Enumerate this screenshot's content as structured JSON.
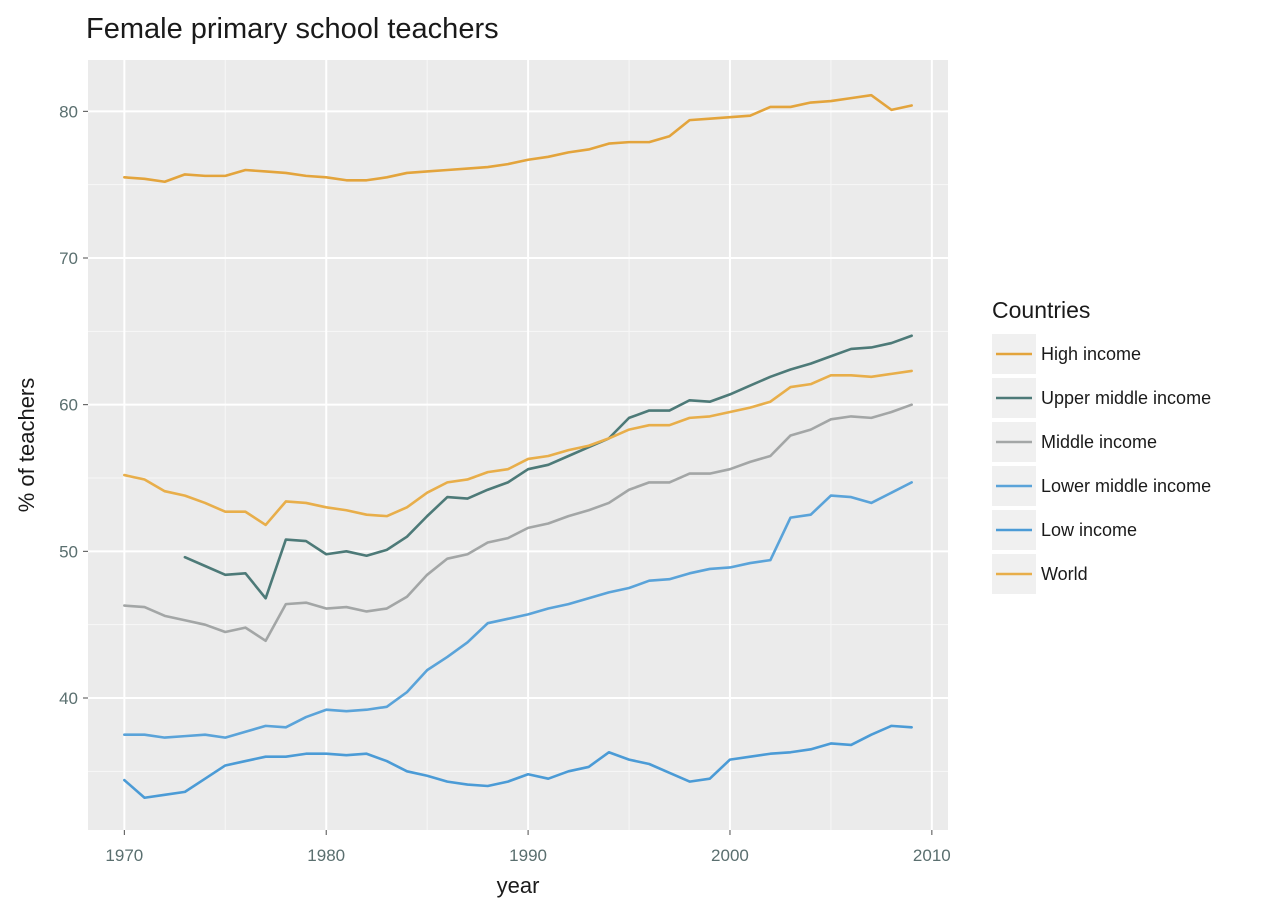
{
  "chart_data": {
    "type": "line",
    "title": "Female primary school teachers",
    "xlabel": "year",
    "ylabel": "% of teachers",
    "xlim": [
      1968.2,
      2010.8
    ],
    "ylim": [
      31.0,
      83.5
    ],
    "x_ticks": [
      1970,
      1980,
      1990,
      2000,
      2010
    ],
    "y_ticks": [
      40,
      50,
      60,
      70,
      80
    ],
    "grid": true,
    "legend": {
      "title": "Countries",
      "placement": "right"
    },
    "series": [
      {
        "name": "High income",
        "color": "#e3a43c",
        "x": [
          1970,
          1971,
          1972,
          1973,
          1974,
          1975,
          1976,
          1977,
          1978,
          1979,
          1980,
          1981,
          1982,
          1983,
          1984,
          1985,
          1986,
          1987,
          1988,
          1989,
          1990,
          1991,
          1992,
          1993,
          1994,
          1995,
          1996,
          1997,
          1998,
          1999,
          2000,
          2001,
          2002,
          2003,
          2004,
          2005,
          2006,
          2007,
          2008,
          2009
        ],
        "values": [
          75.5,
          75.4,
          75.2,
          75.7,
          75.6,
          75.6,
          76.0,
          75.9,
          75.8,
          75.6,
          75.5,
          75.3,
          75.3,
          75.5,
          75.8,
          75.9,
          76.0,
          76.1,
          76.2,
          76.4,
          76.7,
          76.9,
          77.2,
          77.4,
          77.8,
          77.9,
          77.9,
          78.3,
          79.4,
          79.5,
          79.6,
          79.7,
          80.3,
          80.3,
          80.6,
          80.7,
          80.9,
          81.1,
          80.1,
          80.4
        ]
      },
      {
        "name": "Upper middle income",
        "color": "#4d7a78",
        "x": [
          1973,
          1974,
          1975,
          1976,
          1977,
          1978,
          1979,
          1980,
          1981,
          1982,
          1983,
          1984,
          1985,
          1986,
          1987,
          1988,
          1989,
          1990,
          1991,
          1992,
          1993,
          1994,
          1995,
          1996,
          1997,
          1998,
          1999,
          2000,
          2001,
          2002,
          2003,
          2004,
          2005,
          2006,
          2007,
          2008,
          2009
        ],
        "values": [
          49.6,
          49.0,
          48.4,
          48.5,
          46.8,
          50.8,
          50.7,
          49.8,
          50.0,
          49.7,
          50.1,
          51.0,
          52.4,
          53.7,
          53.6,
          54.2,
          54.7,
          55.6,
          55.9,
          56.5,
          57.1,
          57.7,
          59.1,
          59.6,
          59.6,
          60.3,
          60.2,
          60.7,
          61.3,
          61.9,
          62.4,
          62.8,
          63.3,
          63.8,
          63.9,
          64.2,
          64.7
        ]
      },
      {
        "name": "Middle income",
        "color": "#a3a6a6",
        "x": [
          1970,
          1971,
          1972,
          1973,
          1974,
          1975,
          1976,
          1977,
          1978,
          1979,
          1980,
          1981,
          1982,
          1983,
          1984,
          1985,
          1986,
          1987,
          1988,
          1989,
          1990,
          1991,
          1992,
          1993,
          1994,
          1995,
          1996,
          1997,
          1998,
          1999,
          2000,
          2001,
          2002,
          2003,
          2004,
          2005,
          2006,
          2007,
          2008,
          2009
        ],
        "values": [
          46.3,
          46.2,
          45.6,
          45.3,
          45.0,
          44.5,
          44.8,
          43.9,
          46.4,
          46.5,
          46.1,
          46.2,
          45.9,
          46.1,
          46.9,
          48.4,
          49.5,
          49.8,
          50.6,
          50.9,
          51.6,
          51.9,
          52.4,
          52.8,
          53.3,
          54.2,
          54.7,
          54.7,
          55.3,
          55.3,
          55.6,
          56.1,
          56.5,
          57.9,
          58.3,
          59.0,
          59.2,
          59.1,
          59.5,
          60.0
        ]
      },
      {
        "name": "Lower middle income",
        "color": "#5aa3d9",
        "x": [
          1970,
          1971,
          1972,
          1973,
          1974,
          1975,
          1976,
          1977,
          1978,
          1979,
          1980,
          1981,
          1982,
          1983,
          1984,
          1985,
          1986,
          1987,
          1988,
          1989,
          1990,
          1991,
          1992,
          1993,
          1994,
          1995,
          1996,
          1997,
          1998,
          1999,
          2000,
          2001,
          2002,
          2003,
          2004,
          2005,
          2006,
          2007,
          2008,
          2009
        ],
        "values": [
          37.5,
          37.5,
          37.3,
          37.4,
          37.5,
          37.3,
          37.7,
          38.1,
          38.0,
          38.7,
          39.2,
          39.1,
          39.2,
          39.4,
          40.4,
          41.9,
          42.8,
          43.8,
          45.1,
          45.4,
          45.7,
          46.1,
          46.4,
          46.8,
          47.2,
          47.5,
          48.0,
          48.1,
          48.5,
          48.8,
          48.9,
          49.2,
          49.4,
          52.3,
          52.5,
          53.8,
          53.7,
          53.3,
          54.0,
          54.7
        ]
      },
      {
        "name": "Low income",
        "color": "#4b9bd6",
        "x": [
          1970,
          1971,
          1972,
          1973,
          1974,
          1975,
          1976,
          1977,
          1978,
          1979,
          1980,
          1981,
          1982,
          1983,
          1984,
          1985,
          1986,
          1987,
          1988,
          1989,
          1990,
          1991,
          1992,
          1993,
          1994,
          1995,
          1996,
          1997,
          1998,
          1999,
          2000,
          2001,
          2002,
          2003,
          2004,
          2005,
          2006,
          2007,
          2008,
          2009
        ],
        "values": [
          34.4,
          33.2,
          33.4,
          33.6,
          34.5,
          35.4,
          35.7,
          36.0,
          36.0,
          36.2,
          36.2,
          36.1,
          36.2,
          35.7,
          35.0,
          34.7,
          34.3,
          34.1,
          34.0,
          34.3,
          34.8,
          34.5,
          35.0,
          35.3,
          36.3,
          35.8,
          35.5,
          34.9,
          34.3,
          34.5,
          35.8,
          36.0,
          36.2,
          36.3,
          36.5,
          36.9,
          36.8,
          37.5,
          38.1,
          38.0
        ]
      },
      {
        "name": "World",
        "color": "#e8ae4a",
        "x": [
          1970,
          1971,
          1972,
          1973,
          1974,
          1975,
          1976,
          1977,
          1978,
          1979,
          1980,
          1981,
          1982,
          1983,
          1984,
          1985,
          1986,
          1987,
          1988,
          1989,
          1990,
          1991,
          1992,
          1993,
          1994,
          1995,
          1996,
          1997,
          1998,
          1999,
          2000,
          2001,
          2002,
          2003,
          2004,
          2005,
          2006,
          2007,
          2008,
          2009
        ],
        "values": [
          55.2,
          54.9,
          54.1,
          53.8,
          53.3,
          52.7,
          52.7,
          51.8,
          53.4,
          53.3,
          53.0,
          52.8,
          52.5,
          52.4,
          53.0,
          54.0,
          54.7,
          54.9,
          55.4,
          55.6,
          56.3,
          56.5,
          56.9,
          57.2,
          57.7,
          58.3,
          58.6,
          58.6,
          59.1,
          59.2,
          59.5,
          59.8,
          60.2,
          61.2,
          61.4,
          62.0,
          62.0,
          61.9,
          62.1,
          62.3
        ]
      }
    ]
  }
}
